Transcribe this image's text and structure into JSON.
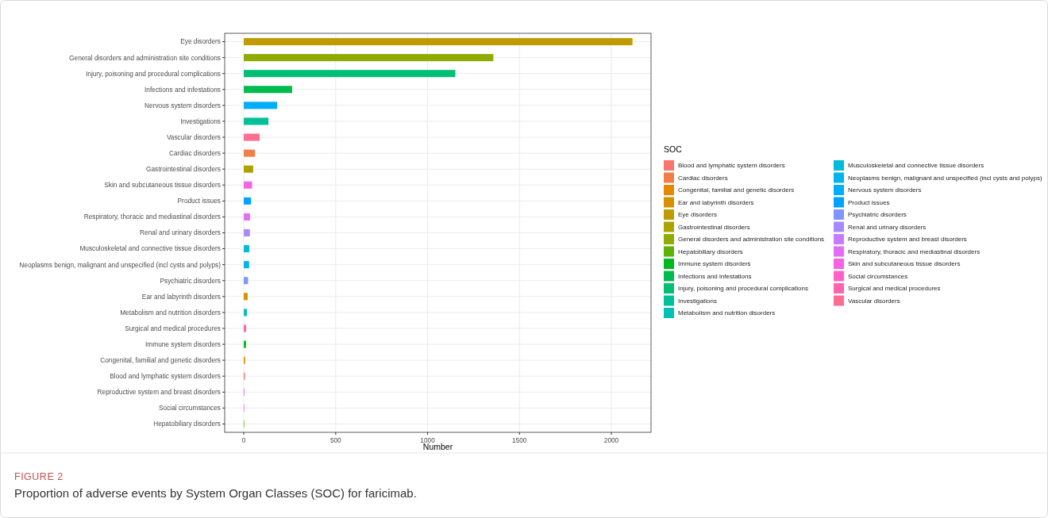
{
  "chart_data": {
    "type": "bar",
    "orientation": "horizontal",
    "xlabel": "Number",
    "legend_title": "SOC",
    "legend": "right",
    "grid": true,
    "annotations": [
      "FIGURE 2",
      "Proportion of adverse events by System Organ Classes (SOC) for faricimab."
    ],
    "xlim": [
      -104,
      2216
    ],
    "xticks": [
      0,
      500,
      1000,
      1500,
      2000
    ],
    "categories": [
      "Eye disorders",
      "General disorders and administration site conditions",
      "Injury, poisoning and procedural complications",
      "Infections and infestations",
      "Nervous system disorders",
      "Investigations",
      "Vascular disorders",
      "Cardiac disorders",
      "Gastrointestinal disorders",
      "Skin and subcutaneous tissue disorders",
      "Product issues",
      "Respiratory, thoracic and mediastinal disorders",
      "Renal and urinary disorders",
      "Musculoskeletal and connective tissue disorders",
      "Neoplasms benign, malignant and unspecified (incl cysts and polyps)",
      "Psychiatric disorders",
      "Ear and labyrinth disorders",
      "Metabolism and nutrition disorders",
      "Surgical and medical procedures",
      "Immune system disorders",
      "Congenital, familial and genetic disorders",
      "Blood and lymphatic system disorders",
      "Reproductive system and breast disorders",
      "Social circumstances",
      "Hepatobiliary disorders"
    ],
    "series": [
      {
        "name": "Blood and lymphatic system disorders",
        "color": "#f8766d",
        "values": [
          null,
          null,
          null,
          null,
          null,
          null,
          null,
          null,
          null,
          null,
          null,
          null,
          null,
          null,
          null,
          null,
          null,
          null,
          null,
          null,
          null,
          6,
          null,
          null,
          null
        ]
      },
      {
        "name": "Cardiac disorders",
        "color": "#ef7f46",
        "values": [
          null,
          null,
          null,
          null,
          null,
          null,
          null,
          61,
          null,
          null,
          null,
          null,
          null,
          null,
          null,
          null,
          null,
          null,
          null,
          null,
          null,
          null,
          null,
          null,
          null
        ]
      },
      {
        "name": "Congenital, familial and genetic disorders",
        "color": "#e38900",
        "values": [
          null,
          null,
          null,
          null,
          null,
          null,
          null,
          null,
          null,
          null,
          null,
          null,
          null,
          null,
          null,
          null,
          null,
          null,
          null,
          null,
          7,
          null,
          null,
          null,
          null
        ]
      },
      {
        "name": "Ear and labyrinth disorders",
        "color": "#d49200",
        "values": [
          null,
          null,
          null,
          null,
          null,
          null,
          null,
          null,
          null,
          null,
          null,
          null,
          null,
          null,
          null,
          null,
          21,
          null,
          null,
          null,
          null,
          null,
          null,
          null,
          null
        ]
      },
      {
        "name": "Eye disorders",
        "color": "#c09b00",
        "values": [
          2115,
          null,
          null,
          null,
          null,
          null,
          null,
          null,
          null,
          null,
          null,
          null,
          null,
          null,
          null,
          null,
          null,
          null,
          null,
          null,
          null,
          null,
          null,
          null,
          null
        ]
      },
      {
        "name": "Gastrointestinal disorders",
        "color": "#aca300",
        "values": [
          null,
          null,
          null,
          null,
          null,
          null,
          null,
          null,
          51,
          null,
          null,
          null,
          null,
          null,
          null,
          null,
          null,
          null,
          null,
          null,
          null,
          null,
          null,
          null,
          null
        ]
      },
      {
        "name": "General disorders and administration site conditions",
        "color": "#8fab00",
        "values": [
          null,
          1358,
          null,
          null,
          null,
          null,
          null,
          null,
          null,
          null,
          null,
          null,
          null,
          null,
          null,
          null,
          null,
          null,
          null,
          null,
          null,
          null,
          null,
          null,
          null
        ]
      },
      {
        "name": "Hepatobiliary disorders",
        "color": "#5fb300",
        "values": [
          null,
          null,
          null,
          null,
          null,
          null,
          null,
          null,
          null,
          null,
          null,
          null,
          null,
          null,
          null,
          null,
          null,
          null,
          null,
          null,
          null,
          null,
          null,
          null,
          3
        ]
      },
      {
        "name": "Immune system disorders",
        "color": "#00b81f",
        "values": [
          null,
          null,
          null,
          null,
          null,
          null,
          null,
          null,
          null,
          null,
          null,
          null,
          null,
          null,
          null,
          null,
          null,
          null,
          null,
          12,
          null,
          null,
          null,
          null,
          null
        ]
      },
      {
        "name": "Infections and infestations",
        "color": "#00bb4e",
        "values": [
          null,
          null,
          null,
          263,
          null,
          null,
          null,
          null,
          null,
          null,
          null,
          null,
          null,
          null,
          null,
          null,
          null,
          null,
          null,
          null,
          null,
          null,
          null,
          null,
          null
        ]
      },
      {
        "name": "Injury, poisoning and procedural complications",
        "color": "#00bf74",
        "values": [
          null,
          null,
          1151,
          null,
          null,
          null,
          null,
          null,
          null,
          null,
          null,
          null,
          null,
          null,
          null,
          null,
          null,
          null,
          null,
          null,
          null,
          null,
          null,
          null,
          null
        ]
      },
      {
        "name": "Investigations",
        "color": "#00c097",
        "values": [
          null,
          null,
          null,
          null,
          null,
          134,
          null,
          null,
          null,
          null,
          null,
          null,
          null,
          null,
          null,
          null,
          null,
          null,
          null,
          null,
          null,
          null,
          null,
          null,
          null
        ]
      },
      {
        "name": "Metabolism and nutrition disorders",
        "color": "#00c0b8",
        "values": [
          null,
          null,
          null,
          null,
          null,
          null,
          null,
          null,
          null,
          null,
          null,
          null,
          null,
          null,
          null,
          null,
          null,
          17,
          null,
          null,
          null,
          null,
          null,
          null,
          null
        ]
      },
      {
        "name": "Musculoskeletal and connective tissue disorders",
        "color": "#00bcd6",
        "values": [
          null,
          null,
          null,
          null,
          null,
          null,
          null,
          null,
          null,
          null,
          null,
          null,
          null,
          30,
          null,
          null,
          null,
          null,
          null,
          null,
          null,
          null,
          null,
          null,
          null
        ]
      },
      {
        "name": "Neoplasms benign, malignant and unspecified (incl cysts and polyps)",
        "color": "#00b5ee",
        "values": [
          null,
          null,
          null,
          null,
          null,
          null,
          null,
          null,
          null,
          null,
          null,
          null,
          null,
          null,
          29,
          null,
          null,
          null,
          null,
          null,
          null,
          null,
          null,
          null,
          null
        ]
      },
      {
        "name": "Nervous system disorders",
        "color": "#00acfc",
        "values": [
          null,
          null,
          null,
          null,
          181,
          null,
          null,
          null,
          null,
          null,
          null,
          null,
          null,
          null,
          null,
          null,
          null,
          null,
          null,
          null,
          null,
          null,
          null,
          null,
          null
        ]
      },
      {
        "name": "Product issues",
        "color": "#00a2ff",
        "values": [
          null,
          null,
          null,
          null,
          null,
          null,
          null,
          null,
          null,
          null,
          39,
          null,
          null,
          null,
          null,
          null,
          null,
          null,
          null,
          null,
          null,
          null,
          null,
          null,
          null
        ]
      },
      {
        "name": "Psychiatric disorders",
        "color": "#7f96ff",
        "values": [
          null,
          null,
          null,
          null,
          null,
          null,
          null,
          null,
          null,
          null,
          null,
          null,
          null,
          null,
          null,
          23,
          null,
          null,
          null,
          null,
          null,
          null,
          null,
          null,
          null
        ]
      },
      {
        "name": "Renal and urinary disorders",
        "color": "#a58aff",
        "values": [
          null,
          null,
          null,
          null,
          null,
          null,
          null,
          null,
          null,
          null,
          null,
          null,
          33,
          null,
          null,
          null,
          null,
          null,
          null,
          null,
          null,
          null,
          null,
          null,
          null
        ]
      },
      {
        "name": "Reproductive system and breast disorders",
        "color": "#c77cff",
        "values": [
          null,
          null,
          null,
          null,
          null,
          null,
          null,
          null,
          null,
          null,
          null,
          null,
          null,
          null,
          null,
          null,
          null,
          null,
          null,
          null,
          null,
          null,
          4,
          null,
          null
        ]
      },
      {
        "name": "Respiratory, thoracic and mediastinal disorders",
        "color": "#e36ef6",
        "values": [
          null,
          null,
          null,
          null,
          null,
          null,
          null,
          null,
          null,
          null,
          null,
          34,
          null,
          null,
          null,
          null,
          null,
          null,
          null,
          null,
          null,
          null,
          null,
          null,
          null
        ]
      },
      {
        "name": "Skin and subcutaneous tissue disorders",
        "color": "#f564e3",
        "values": [
          null,
          null,
          null,
          null,
          null,
          null,
          null,
          null,
          null,
          45,
          null,
          null,
          null,
          null,
          null,
          null,
          null,
          null,
          null,
          null,
          null,
          null,
          null,
          null,
          null
        ]
      },
      {
        "name": "Social circumstances",
        "color": "#ff61c9",
        "values": [
          null,
          null,
          null,
          null,
          null,
          null,
          null,
          null,
          null,
          null,
          null,
          null,
          null,
          null,
          null,
          null,
          null,
          null,
          null,
          null,
          null,
          null,
          null,
          3,
          null
        ]
      },
      {
        "name": "Surgical and medical procedures",
        "color": "#ff65ae",
        "values": [
          null,
          null,
          null,
          null,
          null,
          null,
          null,
          null,
          null,
          null,
          null,
          null,
          null,
          null,
          null,
          null,
          null,
          null,
          13,
          null,
          null,
          null,
          null,
          null,
          null
        ]
      },
      {
        "name": "Vascular disorders",
        "color": "#ff6c91",
        "values": [
          null,
          null,
          null,
          null,
          null,
          null,
          86,
          null,
          null,
          null,
          null,
          null,
          null,
          null,
          null,
          null,
          null,
          null,
          null,
          null,
          null,
          null,
          null,
          null,
          null
        ]
      }
    ]
  }
}
